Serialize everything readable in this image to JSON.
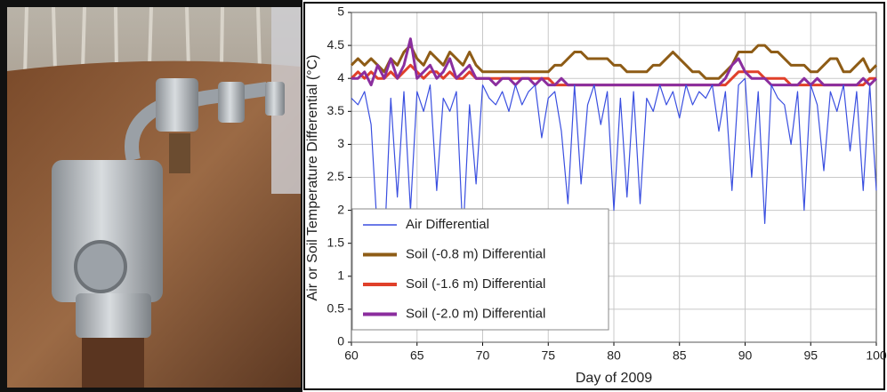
{
  "chart_data": {
    "type": "line",
    "xlabel": "Day of 2009",
    "ylabel": "Air or Soil Temperature Differential (°C)",
    "xlim": [
      60,
      100
    ],
    "ylim": [
      0,
      5
    ],
    "xticks": [
      60,
      65,
      70,
      75,
      80,
      85,
      90,
      95,
      100
    ],
    "yticks": [
      0,
      0.5,
      1,
      1.5,
      2,
      2.5,
      3,
      3.5,
      4,
      4.5,
      5
    ],
    "grid": true,
    "legend": "lower center",
    "x": [
      60,
      60.5,
      61,
      61.5,
      62,
      62.5,
      63,
      63.5,
      64,
      64.5,
      65,
      65.5,
      66,
      66.5,
      67,
      67.5,
      68,
      68.5,
      69,
      69.5,
      70,
      70.5,
      71,
      71.5,
      72,
      72.5,
      73,
      73.5,
      74,
      74.5,
      75,
      75.5,
      76,
      76.5,
      77,
      77.5,
      78,
      78.5,
      79,
      79.5,
      80,
      80.5,
      81,
      81.5,
      82,
      82.5,
      83,
      83.5,
      84,
      84.5,
      85,
      85.5,
      86,
      86.5,
      87,
      87.5,
      88,
      88.5,
      89,
      89.5,
      90,
      90.5,
      91,
      91.5,
      92,
      92.5,
      93,
      93.5,
      94,
      94.5,
      95,
      95.5,
      96,
      96.5,
      97,
      97.5,
      98,
      98.5,
      99,
      99.5,
      100
    ],
    "series": [
      {
        "name": "Air Differential",
        "color": "#3a4fe0",
        "values": [
          3.7,
          3.6,
          3.8,
          3.3,
          1.6,
          1.4,
          3.7,
          2.2,
          3.8,
          2.0,
          3.8,
          3.5,
          3.9,
          2.3,
          3.7,
          3.5,
          3.8,
          1.6,
          3.6,
          2.4,
          3.9,
          3.7,
          3.6,
          3.8,
          3.5,
          3.9,
          3.6,
          3.8,
          3.9,
          3.1,
          3.7,
          3.8,
          3.2,
          2.1,
          3.9,
          2.4,
          3.6,
          3.9,
          3.3,
          3.8,
          2.0,
          3.7,
          2.2,
          3.8,
          2.1,
          3.7,
          3.5,
          3.9,
          3.6,
          3.8,
          3.4,
          3.9,
          3.6,
          3.8,
          3.7,
          3.9,
          3.2,
          3.8,
          2.3,
          3.9,
          4.0,
          2.5,
          3.8,
          1.8,
          3.9,
          3.7,
          3.6,
          3.0,
          3.8,
          2.0,
          3.9,
          3.6,
          2.6,
          3.8,
          3.5,
          3.9,
          2.9,
          3.8,
          2.3,
          3.9,
          2.3
        ]
      },
      {
        "name": "Soil (-0.8 m) Differential",
        "color": "#8e5c16",
        "values": [
          4.2,
          4.3,
          4.2,
          4.3,
          4.2,
          4.1,
          4.3,
          4.2,
          4.4,
          4.5,
          4.3,
          4.2,
          4.4,
          4.3,
          4.2,
          4.4,
          4.3,
          4.2,
          4.4,
          4.2,
          4.1,
          4.1,
          4.1,
          4.1,
          4.1,
          4.1,
          4.1,
          4.1,
          4.1,
          4.1,
          4.1,
          4.2,
          4.2,
          4.3,
          4.4,
          4.4,
          4.3,
          4.3,
          4.3,
          4.3,
          4.2,
          4.2,
          4.1,
          4.1,
          4.1,
          4.1,
          4.2,
          4.2,
          4.3,
          4.4,
          4.3,
          4.2,
          4.1,
          4.1,
          4.0,
          4.0,
          4.0,
          4.1,
          4.2,
          4.4,
          4.4,
          4.4,
          4.5,
          4.5,
          4.4,
          4.4,
          4.3,
          4.2,
          4.2,
          4.2,
          4.1,
          4.1,
          4.2,
          4.3,
          4.3,
          4.1,
          4.1,
          4.2,
          4.3,
          4.1,
          4.2
        ]
      },
      {
        "name": "Soil (-1.6 m) Differential",
        "color": "#e0402a",
        "values": [
          4.0,
          4.1,
          4.0,
          4.1,
          4.0,
          4.0,
          4.1,
          4.0,
          4.1,
          4.2,
          4.1,
          4.0,
          4.1,
          4.1,
          4.0,
          4.1,
          4.0,
          4.0,
          4.1,
          4.0,
          4.0,
          4.0,
          4.0,
          4.0,
          4.0,
          4.0,
          4.0,
          4.0,
          4.0,
          4.0,
          4.0,
          3.9,
          3.9,
          3.9,
          3.9,
          3.9,
          3.9,
          3.9,
          3.9,
          3.9,
          3.9,
          3.9,
          3.9,
          3.9,
          3.9,
          3.9,
          3.9,
          3.9,
          3.9,
          3.9,
          3.9,
          3.9,
          3.9,
          3.9,
          3.9,
          3.9,
          3.9,
          3.9,
          4.0,
          4.1,
          4.1,
          4.1,
          4.1,
          4.0,
          4.0,
          4.0,
          4.0,
          3.9,
          3.9,
          3.9,
          3.9,
          3.9,
          3.9,
          3.9,
          3.9,
          3.9,
          3.9,
          3.9,
          3.9,
          4.0,
          4.0
        ]
      },
      {
        "name": "Soil (-2.0 m) Differential",
        "color": "#8b2e9e",
        "values": [
          4.0,
          4.0,
          4.1,
          3.9,
          4.2,
          4.0,
          4.3,
          4.0,
          4.2,
          4.6,
          4.0,
          4.1,
          4.2,
          4.0,
          4.1,
          4.3,
          4.0,
          4.1,
          4.2,
          4.0,
          4.0,
          4.0,
          3.9,
          4.0,
          4.0,
          3.9,
          4.0,
          4.0,
          3.9,
          4.0,
          3.9,
          3.9,
          4.0,
          3.9,
          3.9,
          3.9,
          3.9,
          3.9,
          3.9,
          3.9,
          3.9,
          3.9,
          3.9,
          3.9,
          3.9,
          3.9,
          3.9,
          3.9,
          3.9,
          3.9,
          3.9,
          3.9,
          3.9,
          3.9,
          3.9,
          3.9,
          3.9,
          4.0,
          4.2,
          4.3,
          4.1,
          4.0,
          4.0,
          4.0,
          3.9,
          3.9,
          3.9,
          3.9,
          3.9,
          4.0,
          3.9,
          4.0,
          3.9,
          3.9,
          3.9,
          3.9,
          3.9,
          3.9,
          4.0,
          3.9,
          4.0
        ]
      }
    ]
  }
}
